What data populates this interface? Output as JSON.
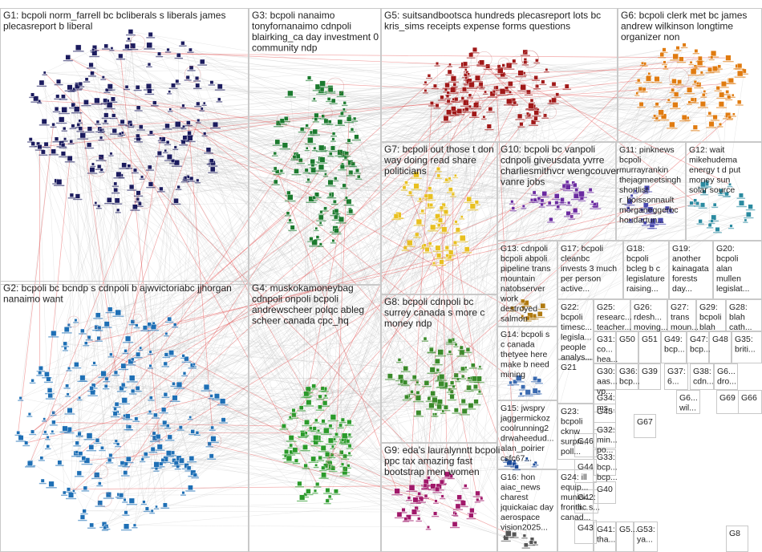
{
  "groups": [
    {
      "id": "G1",
      "label": [
        "G1: bcpoli norm_farrell bc bcliberals s liberals james",
        "plecasreport b liberal"
      ],
      "color": "#1b1b5e"
    },
    {
      "id": "G2",
      "label": [
        "G2: bcpoli bc bcndp s cdnpoli b ajwvictoriabc jjhorgan",
        "nanaimo want"
      ],
      "color": "#1e6fb5"
    },
    {
      "id": "G3",
      "label": [
        "G3: bcpoli nanaimo",
        "tonyfornanaimo cdnpoli",
        "blairking_ca day investment 0",
        "community ndp"
      ],
      "color": "#1b7a2e"
    },
    {
      "id": "G4",
      "label": [
        "G4: muskokamoneybag",
        "cdnpoli onpoli bcpoli",
        "andrewscheer polqc ableg",
        "scheer canada cpc_hq"
      ],
      "color": "#2a9a2a"
    },
    {
      "id": "G5",
      "label": [
        "G5: suitsandbootsca hundreds plecasreport lots bc",
        "kris_sims receipts expense forms questions"
      ],
      "color": "#a01818"
    },
    {
      "id": "G6",
      "label": [
        "G6: bcpoli clerk met bc james",
        "andrew wilkinson longtime",
        "organizer non"
      ],
      "color": "#e07b10"
    },
    {
      "id": "G7",
      "label": [
        "G7: bcpoli out those t don",
        "way doing read share",
        "politicians"
      ],
      "color": "#e8c020"
    },
    {
      "id": "G8",
      "label": [
        "G8: bcpoli cdnpoli bc",
        "surrey canada s more c",
        "money ndp"
      ],
      "color": "#3a8a2a"
    },
    {
      "id": "G9",
      "label": [
        "G9: eda's lauralynntt bcpoli",
        "ppc tax amazing fast",
        "bootstrap men women"
      ],
      "color": "#a0186a"
    },
    {
      "id": "G10",
      "label": [
        "G10: bcpoli bc vanpoli",
        "cdnpoli giveusdata yvrre",
        "charliesmithvcr wengcouver",
        "vanre jobs"
      ],
      "color": "#6a2aa0"
    },
    {
      "id": "G11",
      "label": [
        "G11: pinknews",
        "bcpoli",
        "murrayrankin",
        "thejagmeetsingh",
        "shortlist",
        "r_boissonnault",
        "morganeggerbc",
        "houdartun..."
      ],
      "color": "#4a4ab0"
    },
    {
      "id": "G12",
      "label": [
        "G12: wait",
        "mikehudema",
        "energy t d put",
        "money sun",
        "solar source"
      ],
      "color": "#2a8aa0"
    },
    {
      "id": "G13",
      "label": [
        "G13: cdnpoli",
        "bcpoli abpoli",
        "pipeline trans",
        "mountain",
        "natobserver",
        "work",
        "destroyed",
        "salmon"
      ],
      "color": "#b07a10"
    },
    {
      "id": "G14",
      "label": [
        "G14: bcpoli s",
        "c canada",
        "thetyee here",
        "make b need",
        "mining"
      ],
      "color": "#3a6ab0"
    },
    {
      "id": "G15",
      "label": [
        "G15: jwspry",
        "jaggermickoz",
        "coolrunning2",
        "drwaheedud...",
        "alan_poirier",
        "csfc67..."
      ],
      "color": "#1a4a9a"
    },
    {
      "id": "G16",
      "label": [
        "G16: hon",
        "aiac_news",
        "charest",
        "jquickaiac day",
        "aerospace",
        "vision2025..."
      ],
      "color": "#555"
    },
    {
      "id": "G17",
      "label": [
        "G17: bcpoli",
        "cleanbc",
        "invests 3 much",
        "per person",
        "active..."
      ],
      "color": "#555"
    },
    {
      "id": "G18",
      "label": [
        "G18:",
        "bcpoli",
        "bcleg b c",
        "legislature",
        "raising..."
      ],
      "color": "#555"
    },
    {
      "id": "G19",
      "label": [
        "G19:",
        "another",
        "kainagata",
        "forests",
        "day..."
      ],
      "color": "#555"
    },
    {
      "id": "G20",
      "label": [
        "G20:",
        "bcpoli",
        "alan",
        "mullen",
        "legislat..."
      ],
      "color": "#555"
    },
    {
      "id": "G21",
      "label": [
        "G21"
      ],
      "color": "#555"
    },
    {
      "id": "G22",
      "label": [
        "G22:",
        "bcpoli",
        "timesc...",
        "legisla...",
        "people",
        "analys..."
      ],
      "color": "#555"
    },
    {
      "id": "G23",
      "label": [
        "G23:",
        "bcpoli",
        "cknw",
        "surpri...",
        "poll..."
      ],
      "color": "#555"
    },
    {
      "id": "G24",
      "label": [
        "G24: ill",
        "equip...",
        "munici...",
        "frontli...",
        "canad..."
      ],
      "color": "#555"
    },
    {
      "id": "G25",
      "label": [
        "G25:",
        "researc...",
        "teacher..."
      ],
      "color": "#555"
    },
    {
      "id": "G26",
      "label": [
        "G26:",
        "rdesh...",
        "moving..."
      ],
      "color": "#555"
    },
    {
      "id": "G27",
      "label": [
        "G27:",
        "trans",
        "moun..."
      ],
      "color": "#555"
    },
    {
      "id": "G28",
      "label": [
        "G28:",
        "blah",
        "cath..."
      ],
      "color": "#555"
    },
    {
      "id": "G29",
      "label": [
        "G29:",
        "bcpoli",
        "blah"
      ],
      "color": "#555"
    },
    {
      "id": "G30",
      "label": [
        "G30:",
        "aas...",
        "vp..."
      ],
      "color": "#555"
    },
    {
      "id": "G31",
      "label": [
        "G31:",
        "co...",
        "hea..."
      ],
      "color": "#555"
    },
    {
      "id": "G32",
      "label": [
        "G32:",
        "min...",
        "po..."
      ],
      "color": "#555"
    },
    {
      "id": "G33",
      "label": [
        "G33:",
        "bcp...",
        "bcp..."
      ],
      "color": "#555"
    },
    {
      "id": "G34",
      "label": [
        "G34:",
        "ms..."
      ],
      "color": "#555"
    },
    {
      "id": "G35",
      "label": [
        "G35:",
        "briti..."
      ],
      "color": "#555"
    },
    {
      "id": "G36",
      "label": [
        "G36:",
        "bcp..."
      ],
      "color": "#555"
    },
    {
      "id": "G37",
      "label": [
        "G37:",
        "6..."
      ],
      "color": "#555"
    },
    {
      "id": "G38",
      "label": [
        "G38:",
        "cdn..."
      ],
      "color": "#555"
    },
    {
      "id": "G39",
      "label": [
        "G39"
      ],
      "color": "#555"
    },
    {
      "id": "G40",
      "label": [
        "G40"
      ],
      "color": "#555"
    },
    {
      "id": "G41",
      "label": [
        "G41:",
        "tha..."
      ],
      "color": "#555"
    },
    {
      "id": "G42",
      "label": [
        "G42:",
        "bc s..."
      ],
      "color": "#555"
    },
    {
      "id": "G43",
      "label": [
        "G43"
      ],
      "color": "#555"
    },
    {
      "id": "G44",
      "label": [
        "G44"
      ],
      "color": "#555"
    },
    {
      "id": "G45",
      "label": [
        "G45"
      ],
      "color": "#555"
    },
    {
      "id": "G46",
      "label": [
        "G46"
      ],
      "color": "#555"
    },
    {
      "id": "G47",
      "label": [
        "G47:",
        "bcp..."
      ],
      "color": "#555"
    },
    {
      "id": "G48",
      "label": [
        "G48"
      ],
      "color": "#555"
    },
    {
      "id": "G49",
      "label": [
        "G49:",
        "bcp..."
      ],
      "color": "#555"
    },
    {
      "id": "G50",
      "label": [
        "G50"
      ],
      "color": "#555"
    },
    {
      "id": "G51",
      "label": [
        "G51"
      ],
      "color": "#555"
    },
    {
      "id": "G52",
      "label": [
        "G5..."
      ],
      "color": "#555"
    },
    {
      "id": "G53",
      "label": [
        "G53:",
        "ya..."
      ],
      "color": "#555"
    },
    {
      "id": "G6x1",
      "label": [
        "G6...",
        "dro..."
      ],
      "color": "#555"
    },
    {
      "id": "G6x2",
      "label": [
        "G6...",
        "wil..."
      ],
      "color": "#555"
    },
    {
      "id": "G66",
      "label": [
        "G66"
      ],
      "color": "#555"
    },
    {
      "id": "G67",
      "label": [
        "G67"
      ],
      "color": "#555"
    },
    {
      "id": "G69",
      "label": [
        "G69"
      ],
      "color": "#555"
    },
    {
      "id": "G8x",
      "label": [
        "G8"
      ],
      "color": "#555"
    }
  ],
  "edge_colors": {
    "normal": "#b8b8b8",
    "highlight": "#e23a3a"
  }
}
